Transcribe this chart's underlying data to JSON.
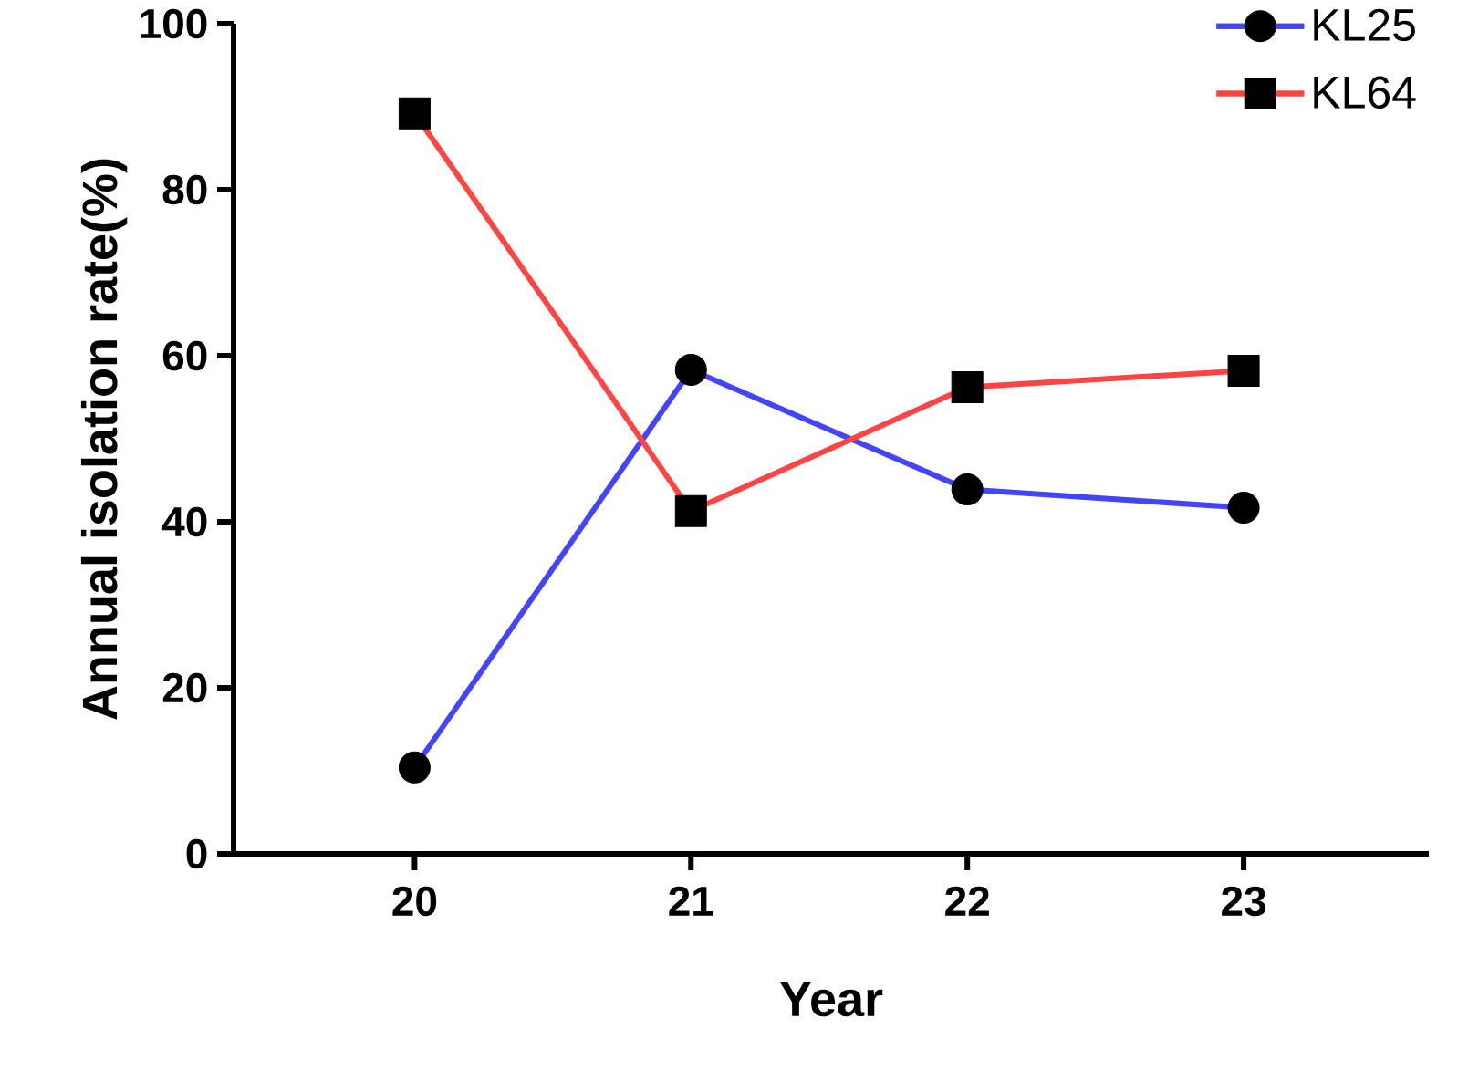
{
  "chart_data": {
    "type": "line",
    "xlabel": "Year",
    "ylabel": "Annual isolation rate(%)",
    "categories": [
      "20",
      "21",
      "22",
      "23"
    ],
    "series": [
      {
        "name": "KL25",
        "color": "#4444ff",
        "marker": "circle",
        "values": [
          10.4,
          58.3,
          43.9,
          41.7
        ]
      },
      {
        "name": "KL64",
        "color": "#ff4444",
        "marker": "square",
        "values": [
          89.2,
          41.3,
          56.2,
          58.2
        ]
      }
    ],
    "ylim": [
      0,
      100
    ],
    "yticks": [
      0,
      20,
      40,
      60,
      80,
      100
    ],
    "legend": "top right",
    "grid": false,
    "line_style": "solid"
  }
}
